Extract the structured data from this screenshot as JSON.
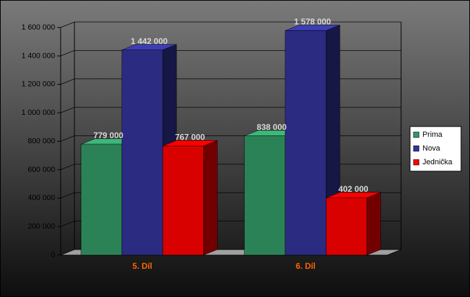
{
  "chart_data": {
    "type": "bar3d",
    "categories": [
      "5. Díl",
      "6. Díl"
    ],
    "series": [
      {
        "name": "Prima",
        "color": "#339966",
        "values": [
          779000,
          838000
        ],
        "value_labels": [
          "779 000",
          "838 000"
        ]
      },
      {
        "name": "Nova",
        "color": "#333399",
        "values": [
          1442000,
          1578000
        ],
        "value_labels": [
          "1 442 000",
          "1 578 000"
        ]
      },
      {
        "name": "Jednička",
        "color": "#ff0000",
        "values": [
          767000,
          402000
        ],
        "value_labels": [
          "767 000",
          "402 000"
        ]
      }
    ],
    "ylim": [
      0,
      1600000
    ],
    "yticks": [
      0,
      {
        "value": 200000,
        "label": "200 000"
      },
      {
        "value": 400000,
        "label": "400 000"
      },
      {
        "value": 600000,
        "label": "600 000"
      },
      {
        "value": 800000,
        "label": "800 000"
      },
      {
        "value": 1000000,
        "label": "1 000 000"
      },
      {
        "value": 1200000,
        "label": "1 200 000"
      },
      {
        "value": 1400000,
        "label": "1 400 000"
      },
      {
        "value": 1600000,
        "label": "1 600 000"
      }
    ],
    "grid": true,
    "legend": "right"
  }
}
